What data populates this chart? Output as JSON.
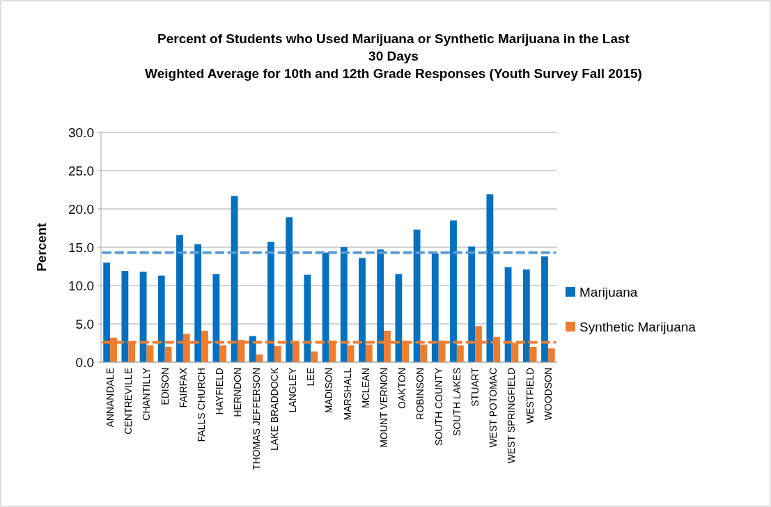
{
  "chart_data": {
    "type": "bar",
    "title": "Percent of Students who Used Marijuana or Synthetic Marijuana in the Last 30 Days",
    "subtitle": "Weighted Average for 10th and 12th Grade Responses (Youth Survey Fall 2015)",
    "ylabel": "Percent",
    "categories": [
      "ANNANDALE",
      "CENTREVILLE",
      "CHANTILLY",
      "EDISON",
      "FAIRFAX",
      "FALLS CHURCH",
      "HAYFIELD",
      "HERNDON",
      "THOMAS JEFFERSON",
      "LAKE BRADDOCK",
      "LANGLEY",
      "LEE",
      "MADISON",
      "MARSHALL",
      "MCLEAN",
      "MOUNT VERNON",
      "OAKTON",
      "ROBINSON",
      "SOUTH COUNTY",
      "SOUTH LAKES",
      "STUART",
      "WEST POTOMAC",
      "WEST SPRINGFIELD",
      "WESTFIELD",
      "WOODSON"
    ],
    "series": [
      {
        "name": "Marijuana",
        "color": "#0070c0",
        "values": [
          13.0,
          11.9,
          11.8,
          11.3,
          16.6,
          15.4,
          11.5,
          21.7,
          3.4,
          15.7,
          18.9,
          11.4,
          14.3,
          15.0,
          13.6,
          14.7,
          11.5,
          17.3,
          14.2,
          18.5,
          15.1,
          21.9,
          12.4,
          12.1,
          13.8
        ]
      },
      {
        "name": "Synthetic Marijuana",
        "color": "#ed7d31",
        "values": [
          3.2,
          2.7,
          2.2,
          2.0,
          3.7,
          4.1,
          2.2,
          2.9,
          1.0,
          2.1,
          2.6,
          1.4,
          2.8,
          2.2,
          2.3,
          4.1,
          2.8,
          2.3,
          2.8,
          2.2,
          4.7,
          3.3,
          2.5,
          2.0,
          1.8
        ]
      }
    ],
    "ylim": [
      0,
      30
    ],
    "yticks": [
      {
        "value": 0,
        "label": "0.0"
      },
      {
        "value": 5,
        "label": "5.0"
      },
      {
        "value": 10,
        "label": "10.0"
      },
      {
        "value": 15,
        "label": "15.0"
      },
      {
        "value": 20,
        "label": "20.0"
      },
      {
        "value": 25,
        "label": "25.0"
      },
      {
        "value": 30,
        "label": "30.0"
      }
    ],
    "ref_lines": [
      {
        "axis": "y",
        "value": 14.3,
        "color": "#5b9bd5",
        "line_style": "dashed"
      },
      {
        "axis": "y",
        "value": 2.6,
        "color": "#ed7d31",
        "line_style": "dashed"
      }
    ],
    "grid": "y",
    "legend": "right"
  }
}
